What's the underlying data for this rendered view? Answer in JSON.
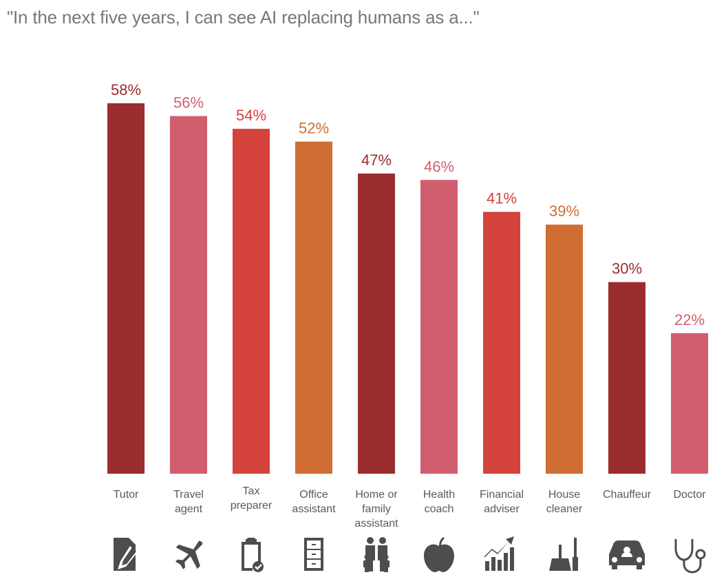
{
  "title": "\"In the next five years, I can see AI replacing humans as a...\"",
  "chart_data": {
    "type": "bar",
    "title": "\"In the next five years, I can see AI replacing humans as a...\"",
    "xlabel": "",
    "ylabel": "",
    "ylim": [
      0,
      60
    ],
    "grid": false,
    "categories": [
      "Tutor",
      "Travel agent",
      "Tax preparer",
      "Office assistant",
      "Home or family assistant",
      "Health coach",
      "Financial adviser",
      "House cleaner",
      "Chauffeur",
      "Doctor"
    ],
    "category_lines": [
      [
        "Tutor"
      ],
      [
        "Travel",
        "agent"
      ],
      [
        "Tax",
        "preparer"
      ],
      [
        "Office",
        "assistant"
      ],
      [
        "Home or",
        "family",
        "assistant"
      ],
      [
        "Health",
        "coach"
      ],
      [
        "Financial",
        "adviser"
      ],
      [
        "House",
        "cleaner"
      ],
      [
        "Chauffeur"
      ],
      [
        "Doctor"
      ]
    ],
    "values": [
      58,
      56,
      54,
      52,
      47,
      46,
      41,
      39,
      30,
      22
    ],
    "value_labels": [
      "58%",
      "56%",
      "54%",
      "52%",
      "47%",
      "46%",
      "41%",
      "39%",
      "30%",
      "22%"
    ],
    "colors": [
      "#9b2d2f",
      "#d15e6f",
      "#d4433b",
      "#d06d33",
      "#9b2d2f",
      "#d15e6f",
      "#d4433b",
      "#d06d33",
      "#9b2d2f",
      "#d15e6f"
    ],
    "icons": [
      "document-pencil-icon",
      "airplane-icon",
      "clipboard-check-icon",
      "filing-cabinet-icon",
      "family-icon",
      "apple-icon",
      "growth-chart-icon",
      "dustpan-brush-icon",
      "car-driver-icon",
      "stethoscope-icon"
    ]
  }
}
